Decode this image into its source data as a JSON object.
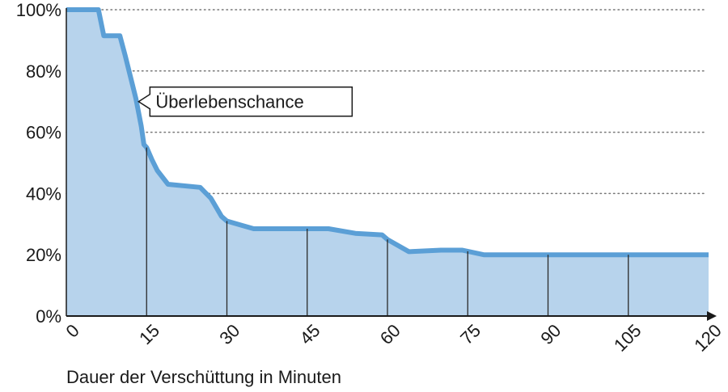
{
  "chart_data": {
    "type": "area",
    "title": "",
    "xlabel": "Dauer der Verschüttung in Minuten",
    "ylabel": "",
    "xlim": [
      0,
      120
    ],
    "ylim": [
      0,
      100
    ],
    "x_ticks": [
      0,
      15,
      30,
      45,
      60,
      75,
      90,
      105,
      120
    ],
    "x_tick_labels": [
      "0",
      "15",
      "30",
      "45",
      "60",
      "75",
      "90",
      "105",
      "120"
    ],
    "y_ticks": [
      0,
      20,
      40,
      60,
      80,
      100
    ],
    "y_tick_labels": [
      "0%",
      "20%",
      "40%",
      "60%",
      "80%",
      "100%"
    ],
    "grid": "horizontal dotted",
    "series": [
      {
        "name": "Überlebenschance",
        "x": [
          0,
          6,
          7,
          10,
          11,
          12,
          13,
          14,
          14.5,
          15,
          16,
          17,
          19,
          25,
          27,
          29,
          30,
          33,
          35,
          45,
          49,
          54,
          59,
          60,
          63,
          64,
          70,
          74,
          78,
          120
        ],
        "y": [
          100,
          100,
          91.5,
          91.5,
          85,
          78,
          71,
          62,
          56,
          55,
          51,
          47.5,
          43,
          42,
          38.5,
          32.5,
          31,
          29.5,
          28.5,
          28.5,
          28.5,
          27,
          26.5,
          25,
          22,
          21,
          21.5,
          21.5,
          20,
          20
        ]
      }
    ],
    "annotations": [
      {
        "text": "Überlebenschance",
        "x": 13.5,
        "y": 70
      }
    ],
    "colors": {
      "line": "#5b9fd6",
      "fill": "#b7d3ec",
      "axis": "#1a1a1a",
      "grid": "#777777"
    }
  }
}
